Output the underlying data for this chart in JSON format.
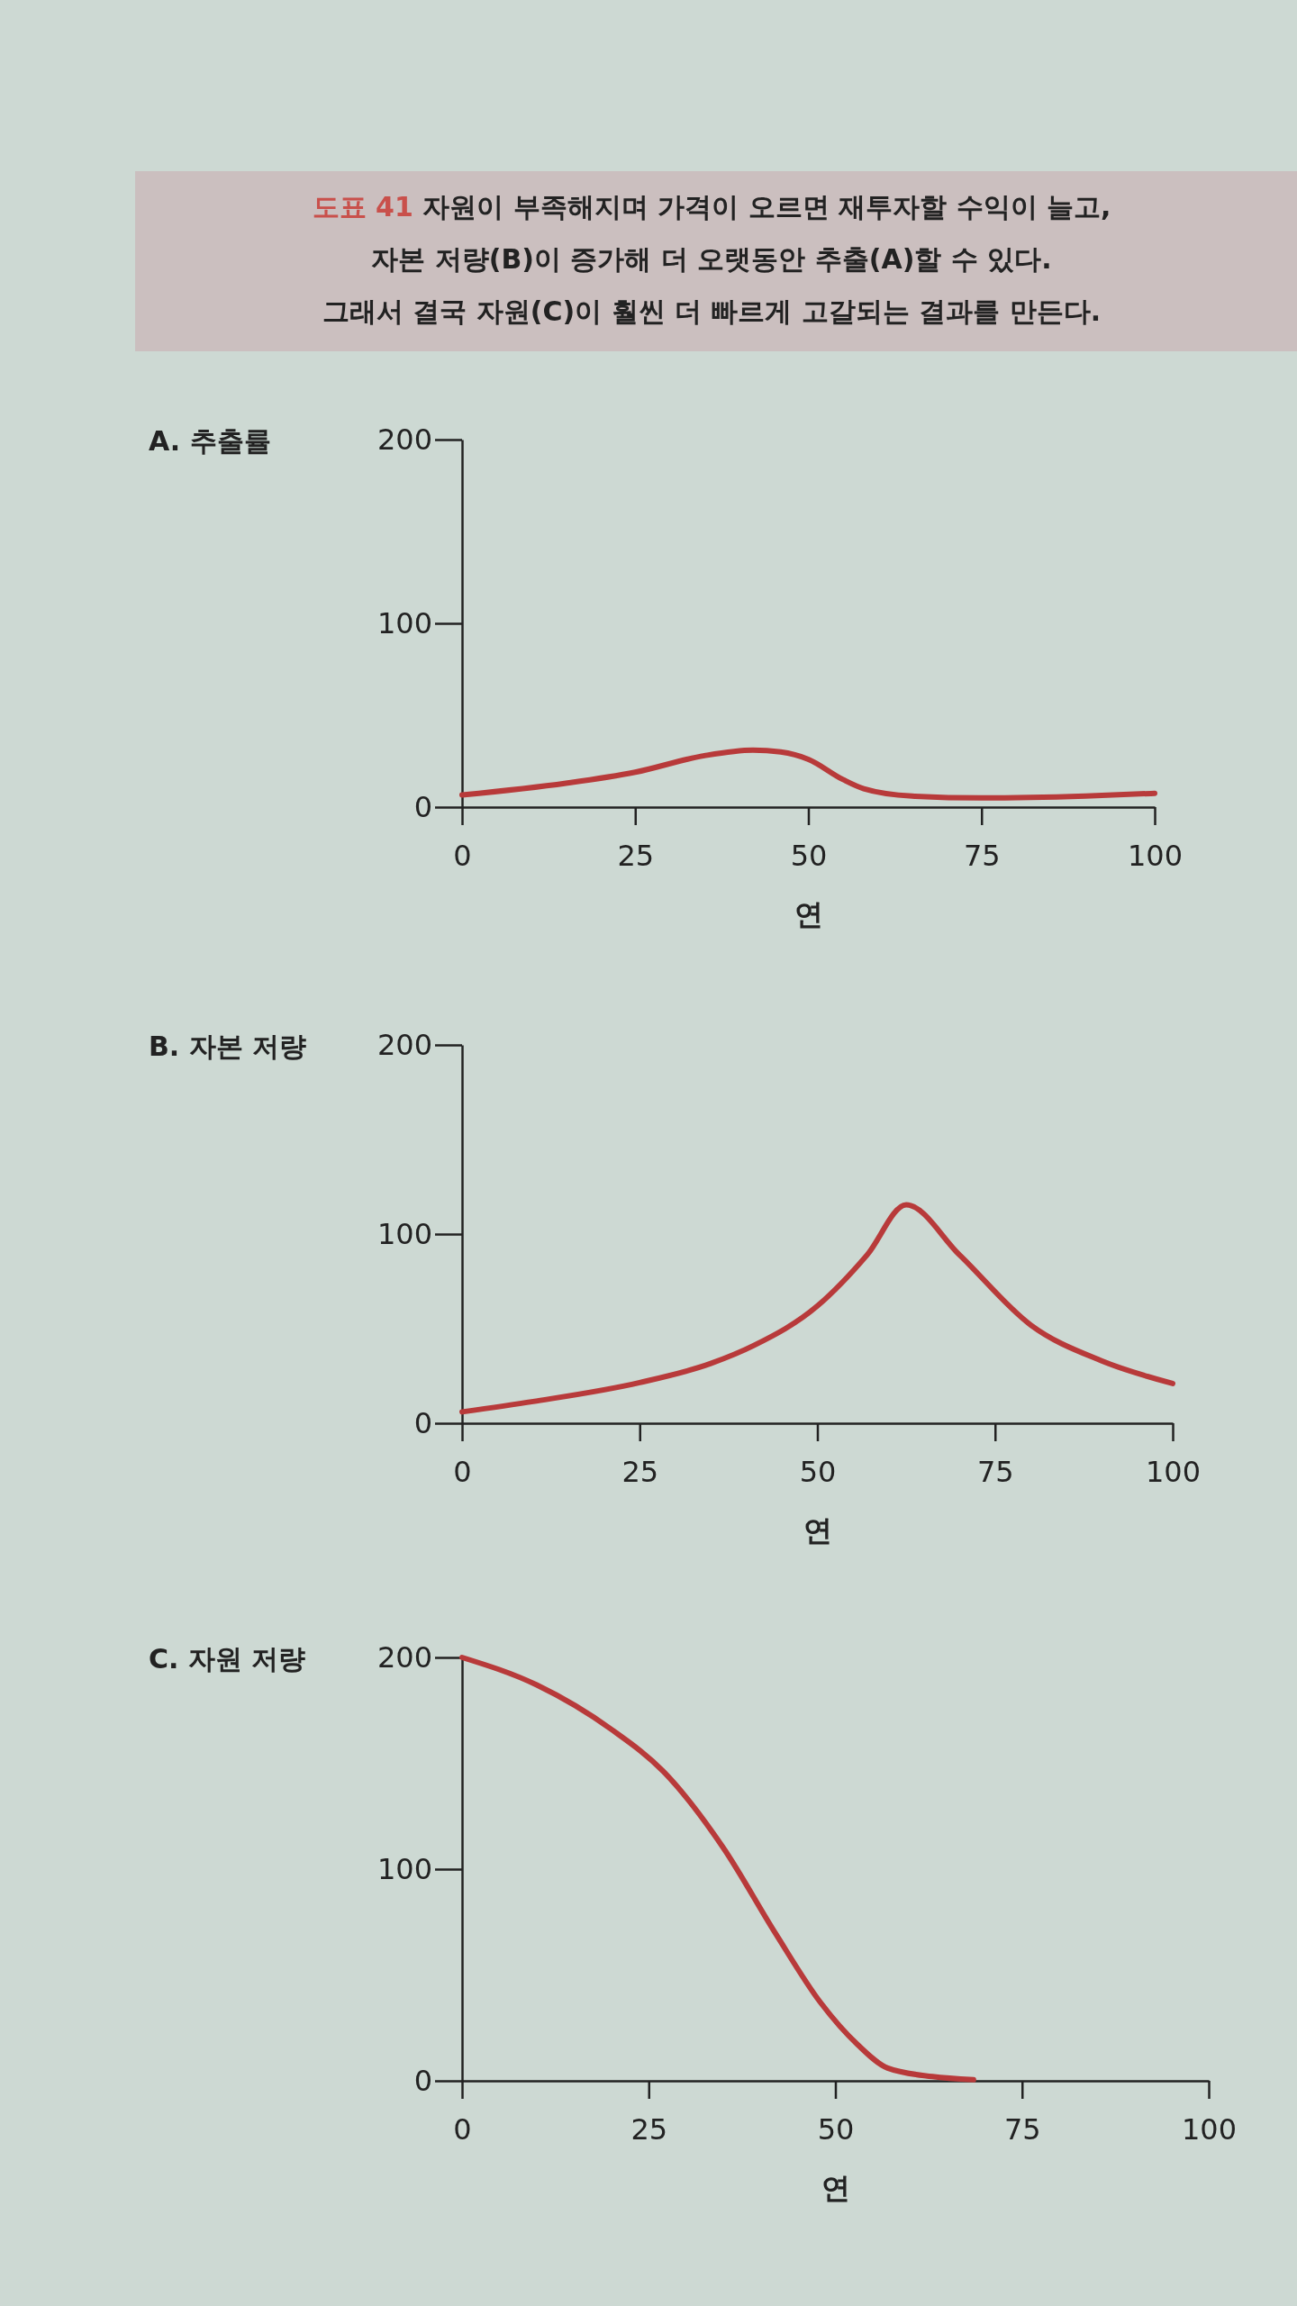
{
  "chart_data": [
    {
      "type": "line",
      "title": "A. 추출률",
      "xlabel": "연",
      "annotations": [
        "도표 41",
        "자원이 부족해지며 가격이 오르면 재투자할 수익이 늘고,",
        "자본 저량(B)이 증가해 더 오랫동안 추출(A)할 수 있다.",
        "그래서 결국 자원(C)이 훨씬 더 빠르게 고갈되는 결과를 만든다."
      ],
      "xlim": [
        0,
        100
      ],
      "xticks": [
        0,
        25,
        50,
        75,
        100
      ],
      "ylim": [
        0,
        200
      ],
      "yticks": [
        0,
        100,
        200
      ],
      "grid": false,
      "marker": "none",
      "line_style": "solid",
      "series": [
        {
          "color": "#b83a3a",
          "x": [
            0,
            15,
            25,
            35,
            42,
            46,
            50,
            55,
            58,
            65,
            75,
            90,
            100
          ],
          "values": [
            6.6,
            13,
            19,
            28,
            31,
            30,
            26,
            15,
            10,
            6,
            5,
            6,
            7.5
          ]
        }
      ]
    },
    {
      "type": "line",
      "title": "B. 자본 저량",
      "xlabel": "연",
      "xlim": [
        0,
        100
      ],
      "xticks": [
        0,
        25,
        50,
        75,
        100
      ],
      "ylim": [
        0,
        200
      ],
      "yticks": [
        0,
        100,
        200
      ],
      "grid": false,
      "marker": "none",
      "line_style": "solid",
      "series": [
        {
          "color": "#b83a3a",
          "x": [
            0,
            10,
            25,
            35,
            41,
            50,
            57,
            62.5,
            70,
            80,
            90,
            100
          ],
          "values": [
            6,
            11.5,
            21.5,
            31.6,
            41,
            62,
            89,
            115.5,
            89,
            52,
            33,
            21
          ]
        }
      ]
    },
    {
      "type": "line",
      "title": "C. 자원 저량",
      "xlabel": "연",
      "xlim": [
        0,
        100
      ],
      "xticks": [
        0,
        25,
        50,
        75,
        100
      ],
      "ylim": [
        0,
        200
      ],
      "yticks": [
        0,
        100,
        200
      ],
      "grid": false,
      "marker": "none",
      "line_style": "solid",
      "series": [
        {
          "color": "#b83a3a",
          "x": [
            0,
            10,
            20,
            27,
            35,
            42,
            48,
            53,
            57,
            63,
            68.5
          ],
          "values": [
            200,
            187,
            166,
            146,
            110,
            69.5,
            37,
            17,
            6,
            2,
            0.5
          ]
        }
      ]
    }
  ]
}
